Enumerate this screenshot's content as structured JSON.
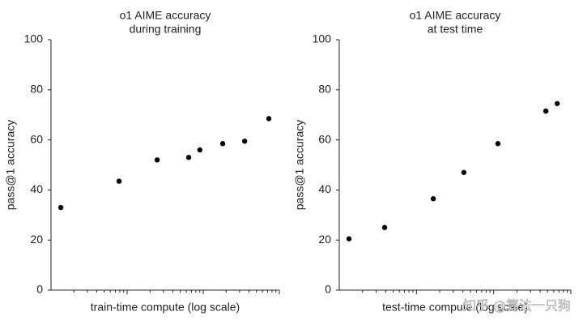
{
  "chart_data": [
    {
      "type": "scatter",
      "title": [
        "o1 AIME accuracy",
        "during training"
      ],
      "xlabel": "train-time compute (log scale)",
      "ylabel": "pass@1 accuracy",
      "log_x": true,
      "color": "#000000",
      "x": [
        4.3,
        29.8,
        46.5,
        60.3,
        65.2,
        75.2,
        84.8,
        95.4
      ],
      "values": [
        33,
        43.5,
        52,
        53,
        56,
        58.5,
        59.5,
        68.5
      ],
      "xlim": [
        0,
        100
      ],
      "ylim": [
        0,
        100
      ],
      "yticks": [
        0,
        20,
        40,
        60,
        80,
        100
      ]
    },
    {
      "type": "scatter",
      "title": [
        "o1 AIME accuracy",
        "at test time"
      ],
      "xlabel": "test-time compute (log scale)",
      "ylabel": "pass@1 accuracy",
      "log_x": true,
      "color": "#000000",
      "x": [
        4.2,
        19.6,
        40.6,
        53.8,
        68.5,
        89.2,
        94.1
      ],
      "values": [
        20.5,
        25,
        36.5,
        47,
        58.5,
        71.5,
        74.5
      ],
      "xlim": [
        0,
        100
      ],
      "ylim": [
        0,
        100
      ],
      "yticks": [
        0,
        20,
        40,
        60,
        80,
        100
      ]
    }
  ],
  "watermark": "知乎 @算法一只狗"
}
